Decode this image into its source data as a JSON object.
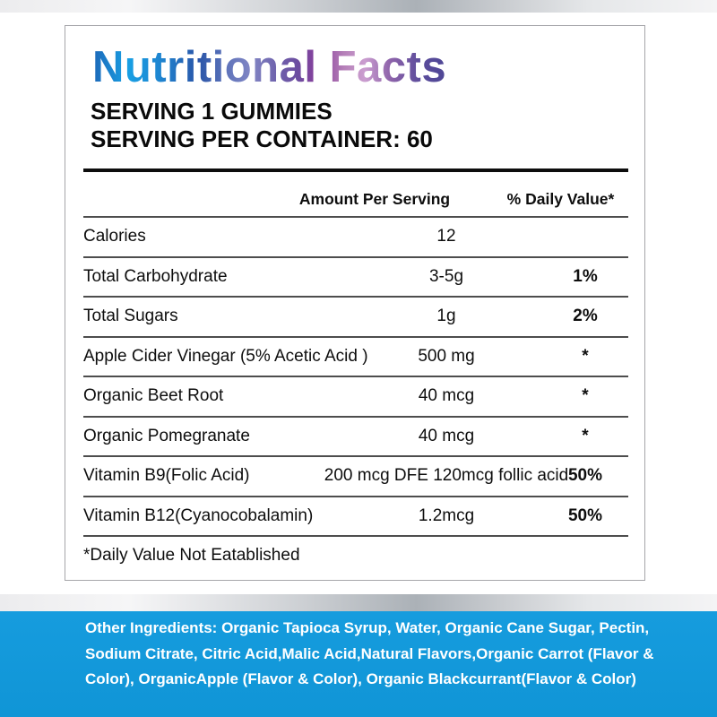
{
  "label": {
    "title": "Nutritional Facts",
    "serving_line1": "SERVING 1 GUMMIES",
    "serving_line2": "SERVING PER CONTAINER: 60",
    "table": {
      "amount_header": "Amount Per Serving",
      "dv_header": "% Daily Value*",
      "rows": [
        {
          "name": "Calories",
          "amount": "12",
          "dv": ""
        },
        {
          "name": "Total Carbohydrate",
          "amount": "3-5g",
          "dv": "1%"
        },
        {
          "name": "Total Sugars",
          "amount": "1g",
          "dv": "2%"
        },
        {
          "name": "Apple Cider Vinegar (5% Acetic Acid )",
          "amount": "500 mg",
          "dv": "*"
        },
        {
          "name": "Organic Beet Root",
          "amount": "40 mcg",
          "dv": "*"
        },
        {
          "name": "Organic Pomegranate",
          "amount": "40 mcg",
          "dv": "*"
        },
        {
          "name": "Vitamin B9(Folic Acid)",
          "amount": "200 mcg DFE 120mcg follic acid",
          "dv": "50%"
        },
        {
          "name": "Vitamin B12(Cyanocobalamin)",
          "amount": "1.2mcg",
          "dv": "50%"
        }
      ],
      "footnote": "*Daily Value Not Eatablished"
    }
  },
  "ingredients": {
    "text": "Other Ingredients: Organic Tapioca Syrup, Water, Organic Cane Sugar, Pectin, Sodium Citrate, Citric Acid,Malic Acid,Natural Flavors,Organic Carrot (Flavor & Color), OrganicApple (Flavor & Color), Organic Blackcurrant(Flavor & Color)"
  },
  "colors": {
    "band_blue": "#1398da",
    "title_gradient_start": "#1d67b8",
    "title_gradient_mid": "#8a3f9c",
    "title_gradient_end": "#4f4796",
    "ingredients_text": "#ffffff"
  }
}
